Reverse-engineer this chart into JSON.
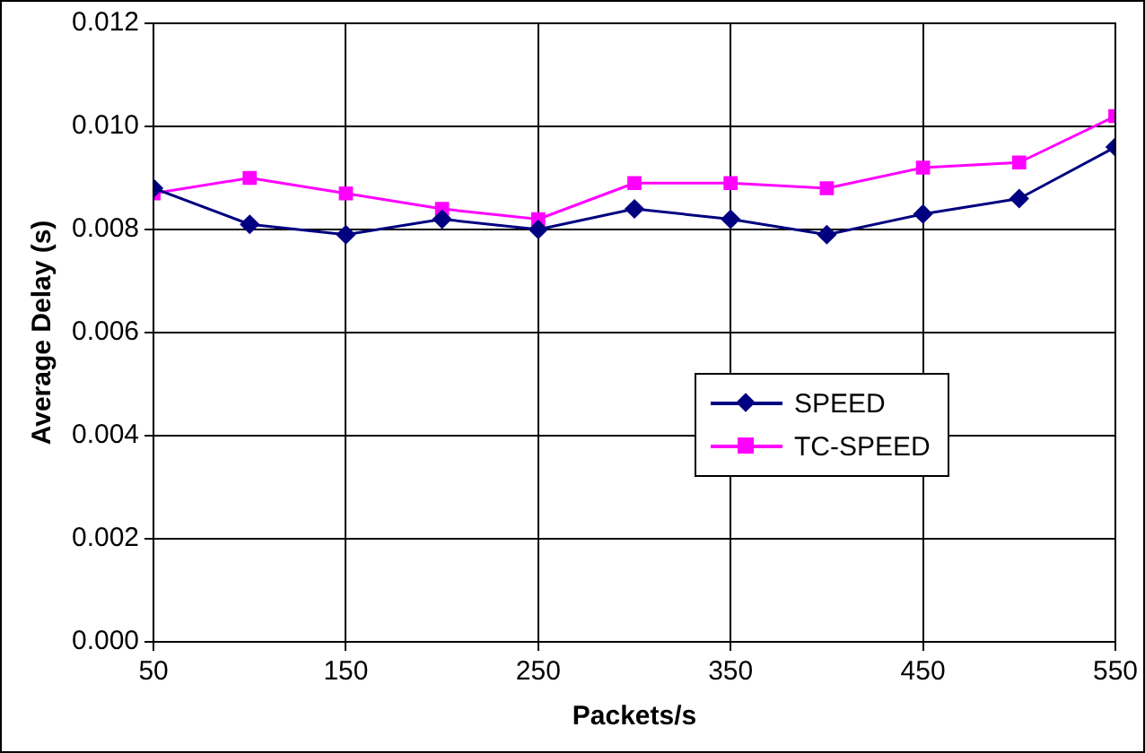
{
  "chart_data": {
    "type": "line",
    "xlabel": "Packets/s",
    "ylabel": "Average Delay (s)",
    "x": [
      50,
      100,
      150,
      200,
      250,
      300,
      350,
      400,
      450,
      500,
      550
    ],
    "series": [
      {
        "name": "SPEED",
        "color": "#000080",
        "marker": "diamond",
        "values": [
          0.0088,
          0.0081,
          0.0079,
          0.0082,
          0.008,
          0.0084,
          0.0082,
          0.0079,
          0.0083,
          0.0086,
          0.0096
        ]
      },
      {
        "name": "TC-SPEED",
        "color": "#ff00ff",
        "marker": "square",
        "values": [
          0.0087,
          0.009,
          0.0087,
          0.0084,
          0.0082,
          0.0089,
          0.0089,
          0.0088,
          0.0092,
          0.0093,
          0.0102
        ]
      }
    ],
    "xlim": [
      50,
      550
    ],
    "xticks": [
      50,
      150,
      250,
      350,
      450,
      550
    ],
    "ylim": [
      0,
      0.012
    ],
    "yticks": [
      {
        "value": 0,
        "label": "0.000"
      },
      {
        "value": 0.002,
        "label": "0.002"
      },
      {
        "value": 0.004,
        "label": "0.004"
      },
      {
        "value": 0.006,
        "label": "0.006"
      },
      {
        "value": 0.008,
        "label": "0.008"
      },
      {
        "value": 0.01,
        "label": "0.010"
      },
      {
        "value": 0.012,
        "label": "0.012"
      }
    ],
    "grid": true,
    "legend": "right",
    "line_style": "solid"
  }
}
